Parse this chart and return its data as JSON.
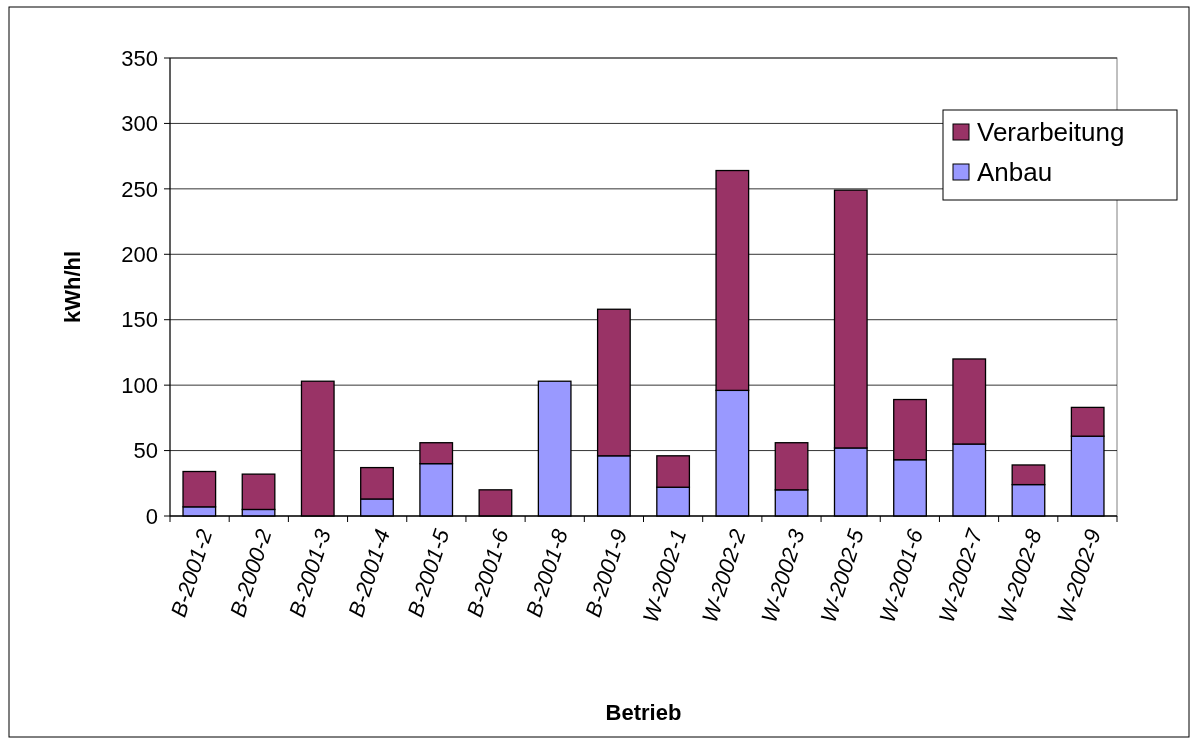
{
  "chart_data": {
    "type": "bar",
    "stacked": true,
    "xlabel": "Betrieb",
    "ylabel": "kWh/hl",
    "categories": [
      "B-2001-2",
      "B-2000-2",
      "B-2001-3",
      "B-2001-4",
      "B-2001-5",
      "B-2001-6",
      "B-2001-8",
      "B-2001-9",
      "W-2002-1",
      "W-2002-2",
      "W-2002-3",
      "W-2002-5",
      "W-2001-6",
      "W-2002-7",
      "W-2002-8",
      "W-2002-9"
    ],
    "series": [
      {
        "name": "Anbau",
        "color": "#9999ff",
        "values": [
          7,
          5,
          0,
          13,
          40,
          0,
          103,
          46,
          22,
          96,
          20,
          52,
          43,
          55,
          24,
          61
        ]
      },
      {
        "name": "Verarbeitung",
        "color": "#993366",
        "values": [
          27,
          27,
          103,
          24,
          16,
          20,
          0,
          112,
          24,
          168,
          36,
          197,
          46,
          65,
          15,
          22
        ]
      }
    ],
    "ylim": [
      0,
      350
    ],
    "yticks": [
      0,
      50,
      100,
      150,
      200,
      250,
      300,
      350
    ],
    "grid": "y",
    "legend": "top right"
  }
}
